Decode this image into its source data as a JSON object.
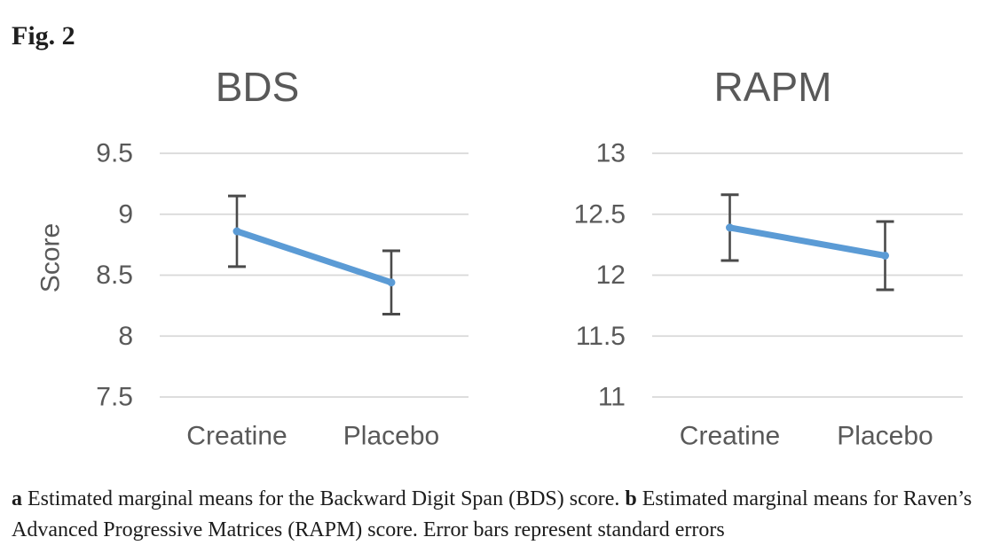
{
  "figure": {
    "label": "Fig. 2"
  },
  "caption": {
    "a_marker": "a",
    "a_text": "Estimated marginal means for the Backward Digit Span (BDS) score.",
    "b_marker": "b",
    "b_text": "Estimated marginal means for Raven’s Advanced Progressive Matrices (RAPM) score. Error bars represent standard errors"
  },
  "colors": {
    "line": "#5B9BD5",
    "error_bar": "#4a4a4a",
    "gridline": "#d8d8d8",
    "axis_text": "#595959",
    "caption_text": "#1c1c1c",
    "background": "#ffffff"
  },
  "chart_data": [
    {
      "type": "line",
      "title": "BDS",
      "ylabel": "Score",
      "xlabel": "",
      "categories": [
        "Creatine",
        "Placebo"
      ],
      "series": [
        {
          "name": "Estimated marginal mean",
          "values": [
            8.86,
            8.44
          ],
          "standard_errors": [
            0.29,
            0.26
          ]
        }
      ],
      "ylim": [
        7.5,
        9.5
      ],
      "yticks": [
        9.5,
        9,
        8.5,
        8,
        7.5
      ],
      "grid": true,
      "legend_position": "none",
      "error_bars": "standard error"
    },
    {
      "type": "line",
      "title": "RAPM",
      "ylabel": "",
      "xlabel": "",
      "categories": [
        "Creatine",
        "Placebo"
      ],
      "series": [
        {
          "name": "Estimated marginal mean",
          "values": [
            12.39,
            12.16
          ],
          "standard_errors": [
            0.27,
            0.28
          ]
        }
      ],
      "ylim": [
        11,
        13
      ],
      "yticks": [
        13,
        12.5,
        12,
        11.5,
        11
      ],
      "grid": true,
      "legend_position": "none",
      "error_bars": "standard error"
    }
  ]
}
